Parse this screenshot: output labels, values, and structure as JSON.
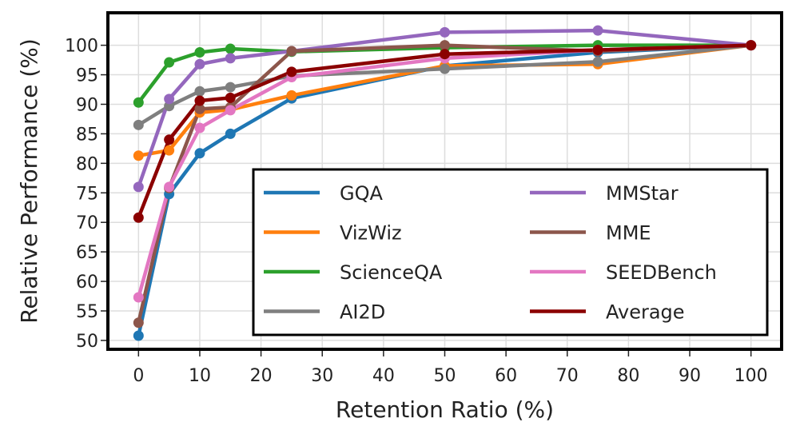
{
  "chart_data": {
    "type": "line",
    "title": "",
    "xlabel": "Retention Ratio (%)",
    "ylabel": "Relative Performance (%)",
    "xlim": [
      -5,
      105
    ],
    "ylim": [
      48.5,
      105.5
    ],
    "xticks": [
      0,
      10,
      20,
      30,
      40,
      50,
      60,
      70,
      80,
      90,
      100
    ],
    "yticks": [
      50,
      55,
      60,
      65,
      70,
      75,
      80,
      85,
      90,
      95,
      100
    ],
    "x": [
      0,
      5,
      10,
      15,
      25,
      50,
      75,
      100
    ],
    "grid": true,
    "legend_position": "lower-right",
    "series": [
      {
        "name": "GQA",
        "color": "#1f77b4",
        "values": [
          50.8,
          74.8,
          81.7,
          85.0,
          91.0,
          96.5,
          98.8,
          100
        ]
      },
      {
        "name": "VizWiz",
        "color": "#ff7f0e",
        "values": [
          81.3,
          82.2,
          88.6,
          89.1,
          91.5,
          96.5,
          96.8,
          100
        ]
      },
      {
        "name": "ScienceQA",
        "color": "#2ca02c",
        "values": [
          90.3,
          97.1,
          98.8,
          99.4,
          98.9,
          99.6,
          100.0,
          100
        ]
      },
      {
        "name": "AI2D",
        "color": "#7f7f7f",
        "values": [
          86.5,
          89.7,
          92.2,
          92.9,
          94.8,
          96.0,
          97.2,
          100
        ]
      },
      {
        "name": "MMStar",
        "color": "#9467bd",
        "values": [
          76.0,
          90.9,
          96.8,
          97.8,
          99.0,
          102.2,
          102.5,
          100
        ]
      },
      {
        "name": "MME",
        "color": "#8c564b",
        "values": [
          53.0,
          75.8,
          89.2,
          89.5,
          99.0,
          100.0,
          99.0,
          100
        ]
      },
      {
        "name": "SEEDBench",
        "color": "#e377c2",
        "values": [
          57.3,
          76.0,
          86.0,
          89.0,
          94.6,
          97.8,
          99.2,
          100
        ]
      },
      {
        "name": "Average",
        "color": "#8b0000",
        "values": [
          70.8,
          84.0,
          90.6,
          91.1,
          95.5,
          98.5,
          99.2,
          100
        ]
      }
    ]
  }
}
